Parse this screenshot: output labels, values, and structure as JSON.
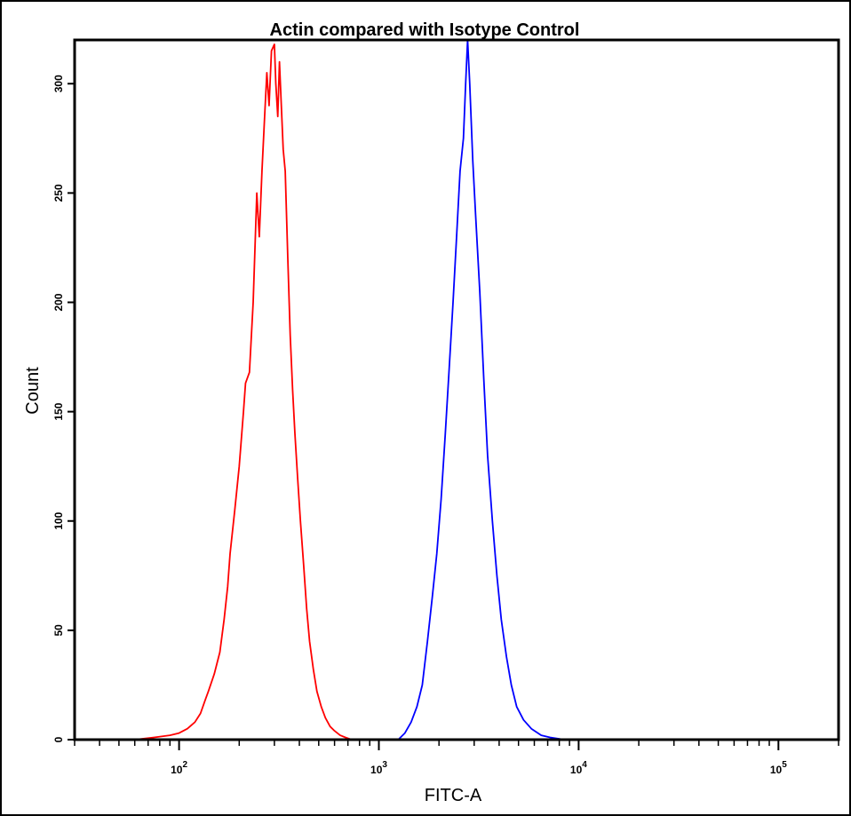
{
  "chart_data": {
    "type": "line",
    "title": "Actin compared with Isotype Control",
    "xlabel": "FITC-A",
    "ylabel": "Count",
    "x_scale": "log",
    "xlim": [
      30,
      200000
    ],
    "ylim": [
      0,
      320
    ],
    "x_major_ticks": [
      {
        "value": 100,
        "base": "10",
        "exp": "2"
      },
      {
        "value": 1000,
        "base": "10",
        "exp": "3"
      },
      {
        "value": 10000,
        "base": "10",
        "exp": "4"
      },
      {
        "value": 100000,
        "base": "10",
        "exp": "5"
      }
    ],
    "y_ticks": [
      {
        "value": 0,
        "label": "0"
      },
      {
        "value": 50,
        "label": "50"
      },
      {
        "value": 100,
        "label": "100"
      },
      {
        "value": 150,
        "label": "150"
      },
      {
        "value": 200,
        "label": "200"
      },
      {
        "value": 250,
        "label": "250"
      },
      {
        "value": 300,
        "label": "300"
      }
    ],
    "grid": false,
    "series": [
      {
        "color": "#ff0000",
        "x": [
          60,
          75,
          90,
          100,
          110,
          120,
          128,
          135,
          140,
          150,
          160,
          168,
          175,
          180,
          190,
          200,
          210,
          215,
          225,
          235,
          245,
          252,
          260,
          268,
          275,
          282,
          290,
          300,
          305,
          312,
          318,
          325,
          332,
          340,
          350,
          360,
          370,
          380,
          392,
          405,
          420,
          435,
          450,
          470,
          490,
          515,
          540,
          570,
          600,
          640,
          680,
          730,
          800
        ],
        "y": [
          0,
          1,
          2,
          3,
          5,
          8,
          12,
          18,
          22,
          30,
          40,
          55,
          70,
          85,
          105,
          125,
          150,
          163,
          168,
          200,
          250,
          230,
          260,
          285,
          305,
          290,
          315,
          318,
          300,
          285,
          310,
          290,
          270,
          260,
          220,
          185,
          160,
          140,
          120,
          100,
          80,
          60,
          45,
          32,
          22,
          15,
          10,
          6,
          4,
          2,
          1,
          0,
          0
        ]
      },
      {
        "color": "#0000ff",
        "x": [
          1250,
          1350,
          1450,
          1550,
          1650,
          1750,
          1850,
          1950,
          2050,
          2150,
          2250,
          2350,
          2450,
          2550,
          2650,
          2720,
          2780,
          2850,
          2950,
          3050,
          3200,
          3350,
          3500,
          3700,
          3900,
          4100,
          4350,
          4600,
          4900,
          5300,
          5800,
          6500,
          7200,
          8500,
          10000
        ],
        "y": [
          0,
          3,
          8,
          15,
          25,
          45,
          65,
          85,
          110,
          140,
          170,
          200,
          230,
          260,
          275,
          300,
          320,
          300,
          265,
          240,
          205,
          165,
          130,
          100,
          75,
          55,
          38,
          25,
          15,
          9,
          5,
          2,
          1,
          0,
          0
        ]
      }
    ]
  }
}
